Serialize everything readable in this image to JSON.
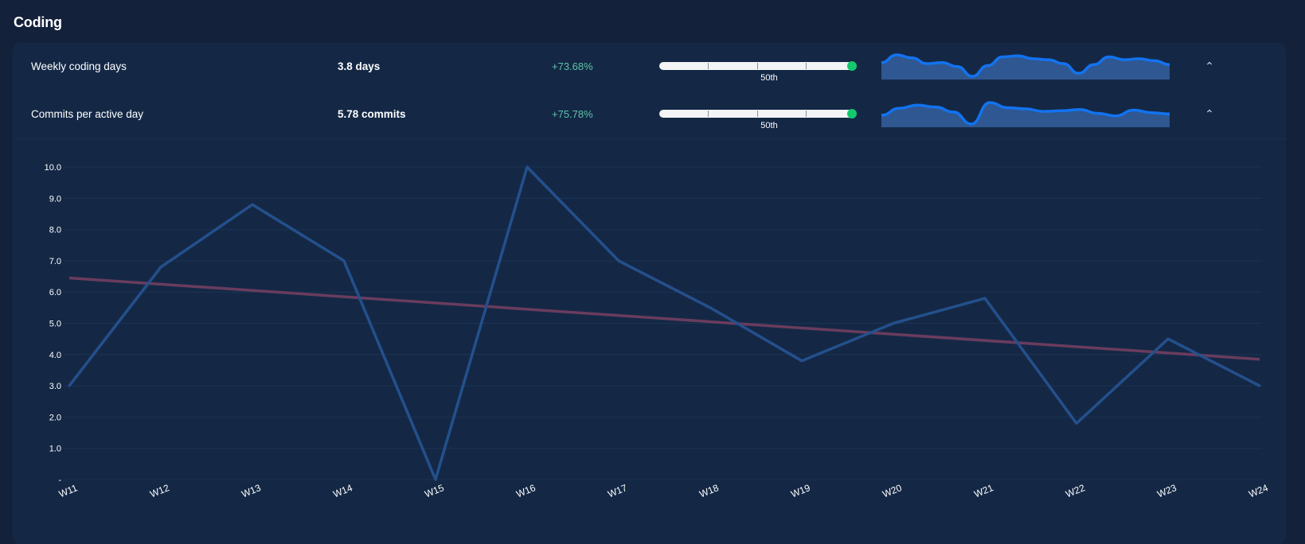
{
  "section": {
    "title": "Coding"
  },
  "metrics": [
    {
      "name": "Weekly coding days",
      "value": "3.8 days",
      "change": "+73.68%",
      "percentile_label": "50th",
      "bar_fill_fraction": 0.97,
      "sparkline": [
        3.6,
        4.4,
        4.1,
        3.5,
        3.6,
        3.2,
        2.2,
        3.3,
        4.2,
        4.3,
        4.0,
        3.9,
        3.5,
        2.5,
        3.4,
        4.2,
        3.9,
        4.0,
        3.8,
        3.4
      ],
      "collapse_icon": "chevron-up-icon"
    },
    {
      "name": "Commits per active day",
      "value": "5.78 commits",
      "change": "+75.78%",
      "percentile_label": "50th",
      "bar_fill_fraction": 0.97,
      "sparkline": [
        3.0,
        4.1,
        4.6,
        4.3,
        3.5,
        1.6,
        5.0,
        4.2,
        4.0,
        3.6,
        3.7,
        3.9,
        3.3,
        2.9,
        3.8,
        3.4,
        3.2
      ],
      "collapse_icon": "chevron-up-icon"
    }
  ],
  "colors": {
    "background": "#13213a",
    "card": "#142846",
    "series_line": "#24508c",
    "trend_line": "#6a3c5e",
    "grid": "#1b3252",
    "change_positive": "#5fc2a8",
    "percentile_dot": "#14c86e",
    "sparkline_line": "#1273f0",
    "sparkline_fill": "#2f5791"
  },
  "chart_data": {
    "type": "line",
    "categories": [
      "W11",
      "W12",
      "W13",
      "W14",
      "W15",
      "W16",
      "W17",
      "W18",
      "W19",
      "W20",
      "W21",
      "W22",
      "W23",
      "W24"
    ],
    "series": [
      {
        "name": "",
        "values": [
          3.0,
          6.8,
          8.8,
          7.0,
          0.0,
          10.0,
          7.0,
          5.5,
          3.8,
          5.0,
          5.8,
          1.8,
          4.5,
          3.0
        ]
      }
    ],
    "trend": {
      "start": 6.45,
      "end": 3.85
    },
    "y_ticks": [
      "-",
      "1.0",
      "2.0",
      "3.0",
      "4.0",
      "5.0",
      "6.0",
      "7.0",
      "8.0",
      "9.0",
      "10.0"
    ],
    "ylim": [
      0,
      10
    ],
    "grid": true
  }
}
